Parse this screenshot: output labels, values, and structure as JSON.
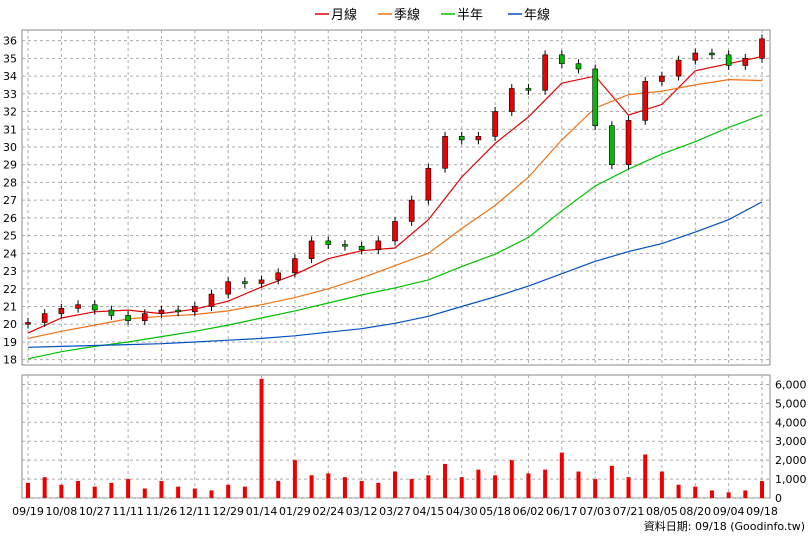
{
  "chart_data": [
    {
      "type": "line",
      "title": "",
      "legend": {
        "placement": "top-center",
        "items": [
          {
            "label": "月線",
            "color": "#e00000"
          },
          {
            "label": "季線",
            "color": "#f07010"
          },
          {
            "label": "半年",
            "color": "#00c000"
          },
          {
            "label": "年線",
            "color": "#0050c0"
          }
        ]
      },
      "y_ticks": [
        36,
        35,
        34,
        33,
        32,
        31,
        30,
        29,
        28,
        27,
        26,
        25,
        24,
        23,
        22,
        21,
        20,
        19,
        18
      ],
      "ylim": [
        17.7,
        36.6
      ],
      "grid": true,
      "x_tick_labels": [
        "09/19",
        "10/08",
        "10/27",
        "11/11",
        "11/26",
        "12/11",
        "12/29",
        "01/14",
        "01/29",
        "02/24",
        "03/12",
        "03/27",
        "04/15",
        "04/30",
        "05/18",
        "06/02",
        "06/17",
        "07/03",
        "07/21",
        "08/05",
        "08/20",
        "09/04",
        "09/18"
      ],
      "series": [
        {
          "name": "月線",
          "color": "#e00000",
          "x": [
            0,
            1,
            2,
            3,
            4,
            5,
            6,
            7,
            8,
            9,
            10,
            11,
            12,
            13,
            14,
            15,
            16,
            17,
            18,
            19,
            20,
            21,
            22
          ],
          "values": [
            19.5,
            20.35,
            20.7,
            20.8,
            20.6,
            20.85,
            21.3,
            22.1,
            22.8,
            23.7,
            24.15,
            24.3,
            25.9,
            28.3,
            30.2,
            31.7,
            33.6,
            34.0,
            31.8,
            32.4,
            34.3,
            34.7,
            35.1
          ]
        },
        {
          "name": "季線",
          "color": "#f07010",
          "x": [
            0,
            1,
            2,
            3,
            4,
            5,
            6,
            7,
            8,
            9,
            10,
            11,
            12,
            13,
            14,
            15,
            16,
            17,
            18,
            19,
            20,
            21,
            22
          ],
          "values": [
            19.2,
            19.6,
            19.95,
            20.3,
            20.45,
            20.55,
            20.75,
            21.1,
            21.5,
            22.0,
            22.6,
            23.3,
            24.0,
            25.4,
            26.7,
            28.3,
            30.4,
            32.2,
            32.95,
            33.15,
            33.5,
            33.8,
            33.75
          ]
        },
        {
          "name": "半年",
          "color": "#00c000",
          "x": [
            0,
            1,
            2,
            3,
            4,
            5,
            6,
            7,
            8,
            9,
            10,
            11,
            12,
            13,
            14,
            15,
            16,
            17,
            18,
            19,
            20,
            21,
            22
          ],
          "values": [
            18.05,
            18.45,
            18.75,
            19.0,
            19.3,
            19.6,
            19.95,
            20.35,
            20.75,
            21.2,
            21.65,
            22.05,
            22.5,
            23.25,
            23.95,
            24.9,
            26.4,
            27.8,
            28.75,
            29.6,
            30.3,
            31.1,
            31.8
          ]
        },
        {
          "name": "年線",
          "color": "#0050c0",
          "x": [
            0,
            1,
            2,
            3,
            4,
            5,
            6,
            7,
            8,
            9,
            10,
            11,
            12,
            13,
            14,
            15,
            16,
            17,
            18,
            19,
            20,
            21,
            22
          ],
          "values": [
            18.7,
            18.75,
            18.8,
            18.85,
            18.9,
            19.0,
            19.1,
            19.2,
            19.35,
            19.55,
            19.75,
            20.05,
            20.45,
            21.0,
            21.55,
            22.15,
            22.85,
            23.55,
            24.1,
            24.55,
            25.2,
            25.9,
            26.9
          ]
        }
      ],
      "candles": {
        "x": [
          0,
          0.5,
          1,
          1.5,
          2,
          2.5,
          3,
          3.5,
          4,
          4.5,
          5,
          5.5,
          6,
          6.5,
          7,
          7.5,
          8,
          8.5,
          9,
          9.5,
          10,
          10.5,
          11,
          11.5,
          12,
          12.5,
          13,
          13.5,
          14,
          14.5,
          15,
          15.5,
          16,
          16.5,
          17,
          17.5,
          18,
          18.5,
          19,
          19.5,
          20,
          20.5,
          21,
          21.5,
          22
        ],
        "open": [
          20.0,
          20.1,
          20.6,
          20.9,
          21.1,
          20.8,
          20.5,
          20.2,
          20.6,
          20.8,
          20.7,
          21.0,
          21.7,
          22.4,
          22.3,
          22.5,
          22.9,
          23.7,
          24.7,
          24.5,
          24.4,
          24.2,
          24.7,
          25.8,
          27.0,
          28.8,
          30.6,
          30.4,
          30.6,
          32.0,
          33.3,
          33.2,
          35.2,
          34.7,
          34.4,
          31.2,
          29.0,
          31.5,
          33.7,
          34.0,
          34.9,
          35.3,
          35.2,
          34.6,
          35.0
        ],
        "close": [
          20.1,
          20.6,
          20.9,
          21.1,
          20.8,
          20.5,
          20.2,
          20.6,
          20.8,
          20.7,
          21.0,
          21.7,
          22.4,
          22.3,
          22.5,
          22.9,
          23.7,
          24.7,
          24.5,
          24.4,
          24.2,
          24.7,
          25.8,
          27.0,
          28.8,
          30.6,
          30.4,
          30.6,
          32.0,
          33.3,
          33.2,
          35.2,
          34.7,
          34.4,
          31.2,
          29.0,
          31.5,
          33.7,
          34.0,
          34.9,
          35.3,
          35.2,
          34.6,
          35.0,
          36.1
        ]
      }
    },
    {
      "type": "bar",
      "title": "",
      "y_ticks": [
        "6,000",
        "5,000",
        "4,000",
        "3,000",
        "2,000",
        "1,000",
        "0"
      ],
      "ylim": [
        0,
        6500
      ],
      "grid": true,
      "x_tick_labels": [
        "09/19",
        "10/08",
        "10/27",
        "11/11",
        "11/26",
        "12/11",
        "12/29",
        "01/14",
        "01/29",
        "02/24",
        "03/12",
        "03/27",
        "04/15",
        "04/30",
        "05/18",
        "06/02",
        "06/17",
        "07/03",
        "07/21",
        "08/05",
        "08/20",
        "09/04",
        "09/18"
      ],
      "series": [
        {
          "name": "",
          "color": "#ee0000",
          "x": [
            0,
            0.5,
            1,
            1.5,
            2,
            2.5,
            3,
            3.5,
            4,
            4.5,
            5,
            5.5,
            6,
            6.5,
            7,
            7,
            7.5,
            8,
            8.5,
            9,
            9.5,
            10,
            10.5,
            11,
            11.5,
            12,
            12.5,
            13,
            13.5,
            14,
            14.5,
            15,
            15.5,
            16,
            16.5,
            17,
            17.5,
            18,
            18.5,
            19,
            19.5,
            20,
            20.5,
            21,
            21.5,
            22
          ],
          "values": [
            800,
            1100,
            700,
            900,
            600,
            800,
            1000,
            500,
            900,
            600,
            500,
            400,
            700,
            600,
            6300,
            1500,
            900,
            2000,
            1200,
            1300,
            1100,
            900,
            800,
            1400,
            1000,
            1200,
            1800,
            1100,
            1500,
            1200,
            2000,
            1300,
            1500,
            2400,
            1400,
            1000,
            1700,
            1100,
            2300,
            1400,
            700,
            600,
            400,
            300,
            400,
            900
          ]
        }
      ],
      "annotation": "資料日期: 09/18 (Goodinfo.tw)"
    }
  ]
}
